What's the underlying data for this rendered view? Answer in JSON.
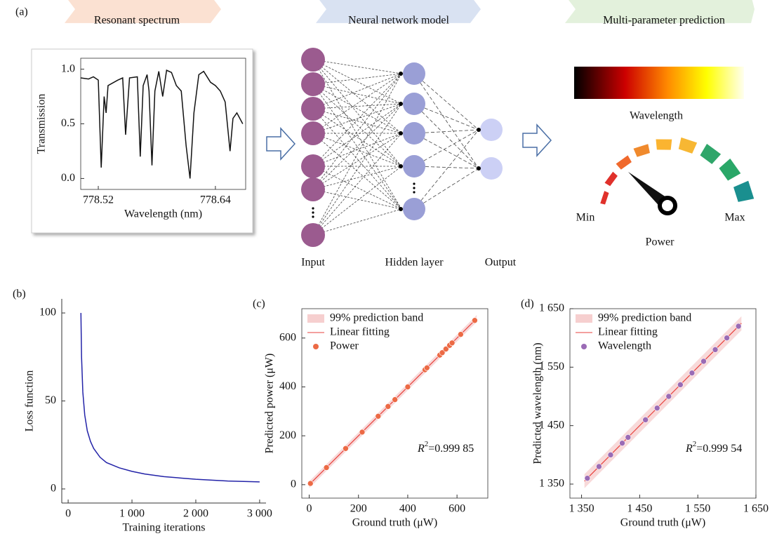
{
  "diagram": {
    "label": "(a)",
    "steps": [
      "Resonant spectrum",
      "Neural network model",
      "Multi-parameter prediction"
    ],
    "layers": [
      "Input",
      "Hidden layer",
      "Output"
    ],
    "colorbar_label": "Wavelength",
    "gauge": {
      "min": "Min",
      "max": "Max",
      "label": "Power"
    }
  },
  "chart_data": [
    {
      "type": "line",
      "ylabel": "Transmission",
      "xlabel": "Wavelength (nm)",
      "xlim": [
        778.502,
        778.671
      ],
      "ylim": [
        -0.1,
        1.1
      ],
      "xticks": [
        778.52,
        778.64
      ],
      "yticks": [
        {
          "value": 0,
          "label": "0.0"
        },
        0.5,
        {
          "value": 1,
          "label": "1.0"
        }
      ],
      "x": [
        778.502,
        778.51,
        778.515,
        778.52,
        778.523,
        778.526,
        778.528,
        778.53,
        778.54,
        778.545,
        778.548,
        778.552,
        778.56,
        778.563,
        778.566,
        778.57,
        778.572,
        778.575,
        778.578,
        778.582,
        778.586,
        778.59,
        778.595,
        778.6,
        778.605,
        778.61,
        778.614,
        778.618,
        778.623,
        778.628,
        778.635,
        778.64,
        778.645,
        778.65,
        778.655,
        778.658,
        778.662,
        778.668
      ],
      "series": [
        {
          "color": "#111111",
          "values": [
            0.92,
            0.91,
            0.93,
            0.9,
            0.1,
            0.75,
            0.6,
            0.85,
            0.9,
            0.92,
            0.4,
            0.92,
            0.93,
            0.2,
            0.85,
            0.95,
            0.8,
            0.12,
            0.8,
            0.98,
            0.75,
            0.99,
            0.97,
            0.85,
            0.8,
            0.3,
            0.0,
            0.6,
            0.95,
            0.98,
            0.88,
            0.85,
            0.8,
            0.7,
            0.25,
            0.55,
            0.6,
            0.5
          ]
        }
      ]
    },
    {
      "type": "line",
      "label": "(b)",
      "ylabel": "Loss function",
      "xlabel": "Training iterations",
      "xlim": [
        -100,
        3100
      ],
      "ylim": [
        -8,
        108
      ],
      "xticks": [
        0,
        {
          "value": 1000,
          "label": "1 000"
        },
        {
          "value": 2000,
          "label": "2 000"
        },
        {
          "value": 3000,
          "label": "3 000"
        }
      ],
      "yticks": [
        0,
        50,
        100
      ],
      "x": [
        200,
        210,
        230,
        260,
        300,
        350,
        400,
        500,
        600,
        800,
        1000,
        1200,
        1500,
        2000,
        2500,
        3000
      ],
      "series": [
        {
          "color": "#2323a8",
          "values": [
            100,
            75,
            55,
            42,
            33,
            27,
            23,
            18,
            15,
            12,
            10,
            8.5,
            7,
            5.5,
            4.5,
            4
          ]
        }
      ]
    },
    {
      "type": "scatter",
      "label": "(c)",
      "ylabel": "Predicted power (μW)",
      "xlabel": "Ground truth (μW)",
      "xlim": [
        -30,
        725
      ],
      "ylim": [
        -55,
        720
      ],
      "xticks": [
        0,
        200,
        400,
        600
      ],
      "yticks": [
        0,
        200,
        400,
        600
      ],
      "annotation": {
        "italic": "R",
        "sup": "2",
        "text": "=0.999 85"
      },
      "band": {
        "name": "99% prediction band",
        "color": "#f6cfcf",
        "x": [
          0,
          680
        ],
        "lower": [
          -14,
          666
        ],
        "upper": [
          14,
          694
        ]
      },
      "fit": {
        "name": "Linear fitting",
        "color": "#e8413c",
        "x": [
          0,
          680
        ],
        "values": [
          0,
          680
        ]
      },
      "series": [
        {
          "name": "Power",
          "color": "#ec6a45",
          "x": [
            5,
            70,
            148,
            215,
            280,
            320,
            348,
            400,
            470,
            478,
            530,
            540,
            555,
            570,
            580,
            615,
            672
          ],
          "values": [
            5,
            70,
            148,
            215,
            280,
            320,
            348,
            400,
            470,
            478,
            530,
            540,
            555,
            570,
            580,
            615,
            672
          ]
        }
      ]
    },
    {
      "type": "scatter",
      "label": "(d)",
      "ylabel": "Predicted wavelength (nm)",
      "xlabel": "Ground truth (μW)",
      "xlim": [
        1330,
        1650
      ],
      "ylim": [
        1326,
        1650
      ],
      "xticks": [
        {
          "value": 1350,
          "label": "1 350"
        },
        {
          "value": 1450,
          "label": "1 450"
        },
        {
          "value": 1550,
          "label": "1 550"
        },
        {
          "value": 1650,
          "label": "1 650"
        }
      ],
      "yticks": [
        {
          "value": 1350,
          "label": "1 350"
        },
        {
          "value": 1450,
          "label": "1 450"
        },
        {
          "value": 1550,
          "label": "1 550"
        },
        {
          "value": 1650,
          "label": "1 650"
        }
      ],
      "annotation": {
        "italic": "R",
        "sup": "2",
        "text": "=0.999 54"
      },
      "band": {
        "name": "99% prediction band",
        "color": "#f6cfcf",
        "x": [
          1355,
          1625
        ],
        "lower": [
          1343,
          1613
        ],
        "upper": [
          1367,
          1637
        ]
      },
      "fit": {
        "name": "Linear fitting",
        "color": "#e8413c",
        "x": [
          1355,
          1625
        ],
        "values": [
          1355,
          1625
        ]
      },
      "series": [
        {
          "name": "Wavelength",
          "color": "#9a6bb5",
          "x": [
            1360,
            1380,
            1400,
            1420,
            1430,
            1460,
            1480,
            1500,
            1520,
            1540,
            1560,
            1580,
            1600,
            1620
          ],
          "values": [
            1360,
            1380,
            1400,
            1420,
            1430,
            1460,
            1480,
            1500,
            1520,
            1540,
            1560,
            1580,
            1600,
            1620
          ]
        }
      ]
    }
  ]
}
